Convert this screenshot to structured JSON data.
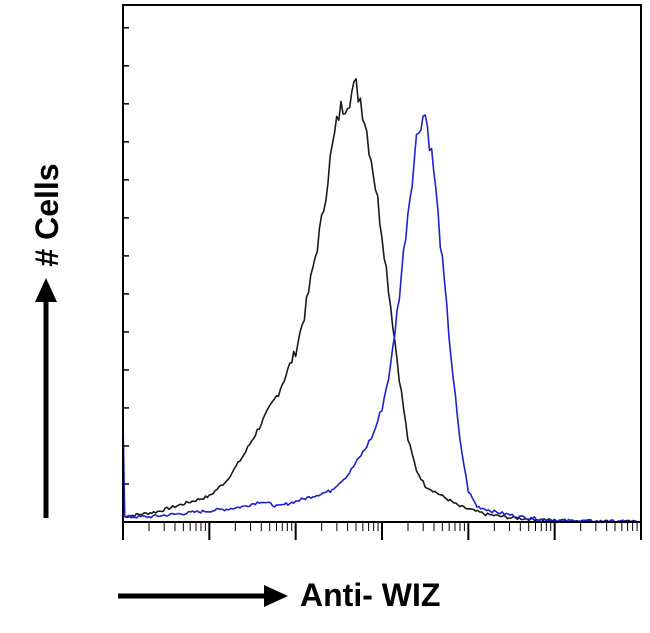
{
  "chart_data": {
    "type": "line",
    "title": "",
    "xlabel": "Anti- WIZ",
    "ylabel": "# Cells",
    "x_scale": "log",
    "xlim": [
      0,
      6
    ],
    "ylim": [
      0,
      100
    ],
    "grid": false,
    "legend": "none",
    "series": [
      {
        "color": "#1a1a1a",
        "points": [
          [
            0.0,
            1
          ],
          [
            0.2,
            1.5
          ],
          [
            0.4,
            2
          ],
          [
            0.6,
            3
          ],
          [
            0.8,
            4
          ],
          [
            1.0,
            5
          ],
          [
            1.2,
            8
          ],
          [
            1.4,
            13
          ],
          [
            1.6,
            19
          ],
          [
            1.8,
            25
          ],
          [
            2.0,
            33
          ],
          [
            2.1,
            40
          ],
          [
            2.2,
            49
          ],
          [
            2.3,
            58
          ],
          [
            2.4,
            70
          ],
          [
            2.5,
            79
          ],
          [
            2.6,
            82
          ],
          [
            2.7,
            84
          ],
          [
            2.75,
            82
          ],
          [
            2.8,
            78
          ],
          [
            2.9,
            68
          ],
          [
            3.0,
            56
          ],
          [
            3.1,
            42
          ],
          [
            3.2,
            28
          ],
          [
            3.3,
            16
          ],
          [
            3.4,
            10
          ],
          [
            3.5,
            7
          ],
          [
            3.7,
            5
          ],
          [
            3.9,
            3
          ],
          [
            4.2,
            1.5
          ],
          [
            4.5,
            0.8
          ],
          [
            5.0,
            0.3
          ],
          [
            6.0,
            0
          ]
        ]
      },
      {
        "color": "#2020cc",
        "points": [
          [
            0.0,
            20
          ],
          [
            0.02,
            1
          ],
          [
            0.3,
            1
          ],
          [
            0.6,
            1.5
          ],
          [
            0.9,
            2
          ],
          [
            1.2,
            2.5
          ],
          [
            1.4,
            3
          ],
          [
            1.6,
            4
          ],
          [
            1.8,
            3
          ],
          [
            2.0,
            4
          ],
          [
            2.2,
            5
          ],
          [
            2.4,
            6
          ],
          [
            2.6,
            9
          ],
          [
            2.8,
            14
          ],
          [
            2.9,
            17
          ],
          [
            3.0,
            22
          ],
          [
            3.1,
            30
          ],
          [
            3.2,
            44
          ],
          [
            3.3,
            60
          ],
          [
            3.4,
            74
          ],
          [
            3.45,
            78
          ],
          [
            3.5,
            79
          ],
          [
            3.55,
            74
          ],
          [
            3.6,
            68
          ],
          [
            3.7,
            50
          ],
          [
            3.8,
            32
          ],
          [
            3.9,
            16
          ],
          [
            4.0,
            6
          ],
          [
            4.1,
            3
          ],
          [
            4.3,
            2
          ],
          [
            4.6,
            1
          ],
          [
            5.0,
            0.3
          ],
          [
            6.0,
            0
          ]
        ]
      }
    ]
  }
}
